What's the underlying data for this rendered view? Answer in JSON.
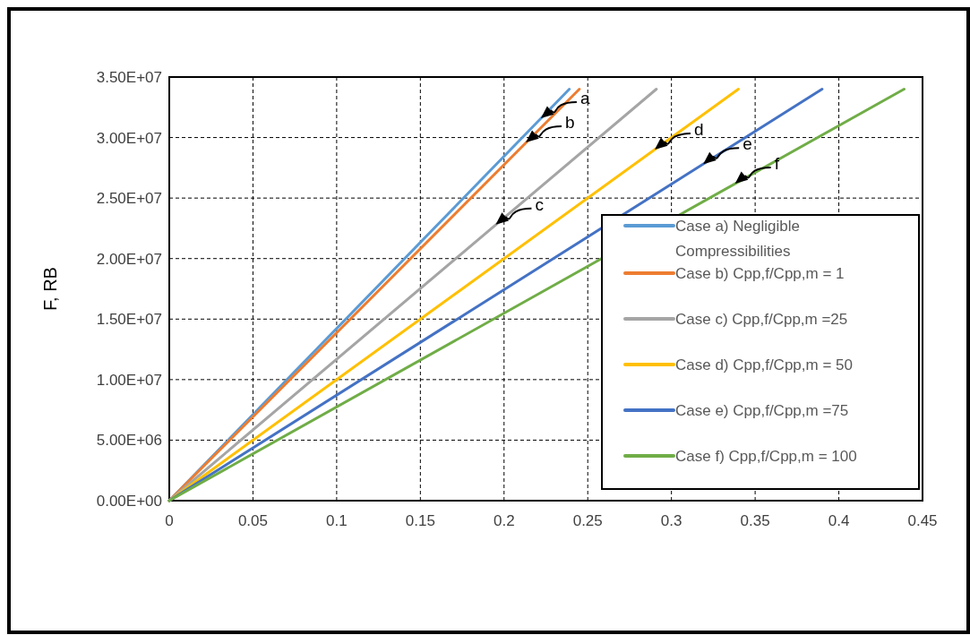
{
  "chart_data": {
    "type": "line",
    "ylabel": "F, RB",
    "xlim": [
      0,
      0.45
    ],
    "xticks": [
      0,
      0.05,
      0.1,
      0.15,
      0.2,
      0.25,
      0.3,
      0.35,
      0.4,
      0.45
    ],
    "ylim": [
      0,
      35000000
    ],
    "yticks": [
      {
        "value": 0,
        "label": "0.00E+00"
      },
      {
        "value": 5000000,
        "label": "5.00E+06"
      },
      {
        "value": 10000000,
        "label": "1.00E+07"
      },
      {
        "value": 15000000,
        "label": "1.50E+07"
      },
      {
        "value": 20000000,
        "label": "2.00E+07"
      },
      {
        "value": 25000000,
        "label": "2.50E+07"
      },
      {
        "value": 30000000,
        "label": "3.00E+07"
      },
      {
        "value": 35000000,
        "label": "3.50E+07"
      }
    ],
    "grid": true,
    "legend": "right",
    "marker": "none",
    "line_style": "solid",
    "series": [
      {
        "name": "Case a) Negligible Compressibilities",
        "color": "#5b9bd5",
        "x": [
          0,
          0.239
        ],
        "values": [
          0,
          34000000
        ]
      },
      {
        "name": "Case b) Cpp,f/Cpp,m = 1",
        "color": "#ed7d31",
        "x": [
          0,
          0.245
        ],
        "values": [
          0,
          34000000
        ]
      },
      {
        "name": "Case c) Cpp,f/Cpp,m =25",
        "color": "#a5a5a5",
        "x": [
          0,
          0.291
        ],
        "values": [
          0,
          34000000
        ]
      },
      {
        "name": "Case d) Cpp,f/Cpp,m = 50",
        "color": "#ffc000",
        "x": [
          0,
          0.34
        ],
        "values": [
          0,
          34000000
        ]
      },
      {
        "name": "Case e) Cpp,f/Cpp,m =75",
        "color": "#4472c4",
        "x": [
          0,
          0.39
        ],
        "values": [
          0,
          34000000
        ]
      },
      {
        "name": "Case f) Cpp,f/Cpp,m = 100",
        "color": "#70ad47",
        "x": [
          0,
          0.439
        ],
        "values": [
          0,
          34000000
        ]
      }
    ],
    "annotations": [
      {
        "text": "a",
        "x": 0.222,
        "y": 31600000
      },
      {
        "text": "b",
        "x": 0.213,
        "y": 29600000
      },
      {
        "text": "c",
        "x": 0.195,
        "y": 22800000
      },
      {
        "text": "d",
        "x": 0.29,
        "y": 29000000
      },
      {
        "text": "e",
        "x": 0.319,
        "y": 27800000
      },
      {
        "text": "f",
        "x": 0.338,
        "y": 26200000
      }
    ]
  }
}
